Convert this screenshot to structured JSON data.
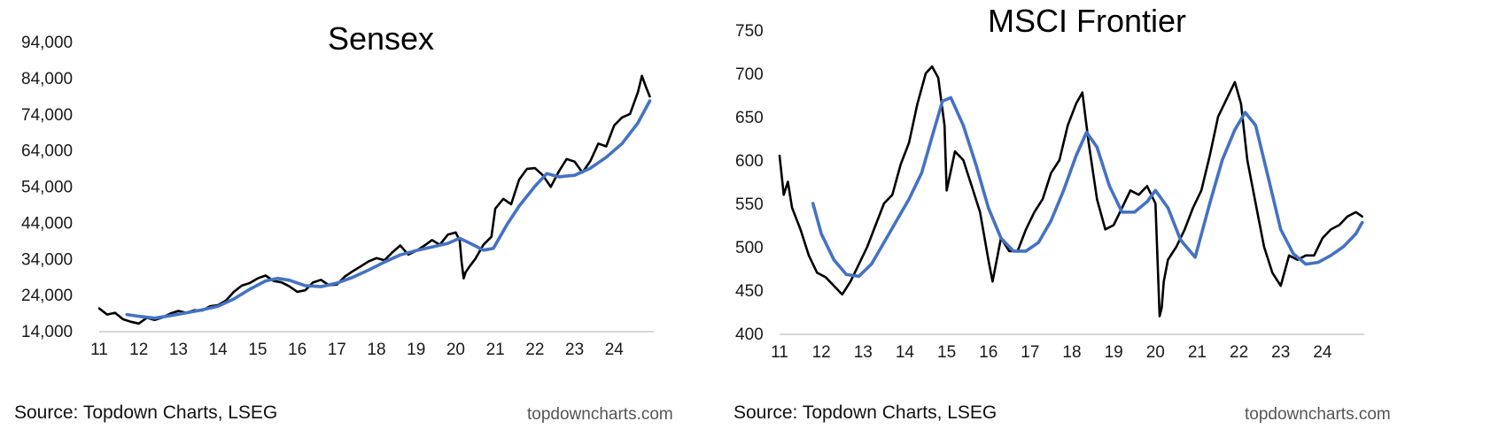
{
  "chart_data": [
    {
      "type": "line",
      "title": "Sensex",
      "xlabel": "",
      "ylabel": "",
      "x_ticks": [
        "11",
        "12",
        "13",
        "14",
        "15",
        "16",
        "17",
        "18",
        "19",
        "20",
        "21",
        "22",
        "23",
        "24"
      ],
      "y_ticks": [
        "14,000",
        "24,000",
        "34,000",
        "44,000",
        "54,000",
        "64,000",
        "74,000",
        "84,000",
        "94,000"
      ],
      "xlim": [
        2011.0,
        2025.0
      ],
      "ylim": [
        14000,
        94000
      ],
      "grid": false,
      "legend": "none",
      "series": [
        {
          "style": "black-raw",
          "color": "#000000",
          "x": [
            2011.0,
            2011.2,
            2011.4,
            2011.6,
            2011.8,
            2012.0,
            2012.2,
            2012.4,
            2012.6,
            2012.8,
            2013.0,
            2013.2,
            2013.4,
            2013.6,
            2013.8,
            2014.0,
            2014.2,
            2014.4,
            2014.6,
            2014.8,
            2015.0,
            2015.2,
            2015.4,
            2015.6,
            2015.8,
            2016.0,
            2016.2,
            2016.4,
            2016.6,
            2016.8,
            2017.0,
            2017.2,
            2017.4,
            2017.6,
            2017.8,
            2018.0,
            2018.2,
            2018.4,
            2018.6,
            2018.8,
            2019.0,
            2019.2,
            2019.4,
            2019.6,
            2019.8,
            2020.0,
            2020.1,
            2020.15,
            2020.2,
            2020.25,
            2020.35,
            2020.5,
            2020.7,
            2020.9,
            2021.0,
            2021.2,
            2021.4,
            2021.6,
            2021.8,
            2022.0,
            2022.2,
            2022.4,
            2022.6,
            2022.8,
            2023.0,
            2023.2,
            2023.4,
            2023.6,
            2023.8,
            2024.0,
            2024.2,
            2024.4,
            2024.6,
            2024.7,
            2024.8,
            2024.9
          ],
          "y": [
            20200,
            18500,
            19000,
            17200,
            16500,
            16000,
            17600,
            17000,
            17700,
            18800,
            19500,
            19000,
            19700,
            19600,
            20800,
            21100,
            22400,
            24800,
            26500,
            27200,
            28500,
            29300,
            27800,
            27400,
            26300,
            24800,
            25200,
            27400,
            28100,
            26600,
            26800,
            29000,
            30500,
            31800,
            33200,
            34100,
            33500,
            35700,
            37600,
            35100,
            36100,
            37500,
            39100,
            37800,
            40600,
            41200,
            39000,
            33000,
            28500,
            30200,
            31800,
            34000,
            37800,
            40000,
            47800,
            50500,
            49000,
            55800,
            58800,
            59000,
            57000,
            53800,
            58000,
            61500,
            60800,
            57800,
            61000,
            65800,
            65000,
            70800,
            73000,
            74000,
            80000,
            84500,
            81500,
            78800
          ]
        },
        {
          "style": "blue-average",
          "color": "#4472c4",
          "x": [
            2011.7,
            2012.0,
            2012.4,
            2012.8,
            2013.2,
            2013.6,
            2014.0,
            2014.4,
            2014.8,
            2015.2,
            2015.5,
            2015.8,
            2016.2,
            2016.6,
            2017.0,
            2017.4,
            2017.8,
            2018.2,
            2018.6,
            2019.0,
            2019.4,
            2019.8,
            2020.1,
            2020.4,
            2020.7,
            2020.95,
            2021.3,
            2021.6,
            2022.0,
            2022.3,
            2022.6,
            2023.0,
            2023.4,
            2023.8,
            2024.2,
            2024.6,
            2024.9
          ],
          "y": [
            18500,
            18000,
            17500,
            18200,
            19000,
            19800,
            20800,
            22800,
            25500,
            27800,
            28500,
            28000,
            26500,
            26200,
            27200,
            28800,
            30800,
            33000,
            35000,
            36200,
            37200,
            38200,
            39600,
            38000,
            36300,
            36800,
            43500,
            48500,
            54000,
            57500,
            56600,
            57000,
            59000,
            62000,
            65800,
            71500,
            77600
          ]
        }
      ]
    },
    {
      "type": "line",
      "title": "MSCI Frontier",
      "xlabel": "",
      "ylabel": "",
      "x_ticks": [
        "11",
        "12",
        "13",
        "14",
        "15",
        "16",
        "17",
        "18",
        "19",
        "20",
        "21",
        "22",
        "23",
        "24"
      ],
      "y_ticks": [
        "400",
        "450",
        "500",
        "550",
        "600",
        "650",
        "700",
        "750"
      ],
      "xlim": [
        2011.0,
        2025.0
      ],
      "ylim": [
        400,
        750
      ],
      "grid": false,
      "legend": "none",
      "series": [
        {
          "style": "black-raw",
          "color": "#000000",
          "x": [
            2011.0,
            2011.1,
            2011.2,
            2011.3,
            2011.5,
            2011.7,
            2011.9,
            2012.1,
            2012.3,
            2012.5,
            2012.7,
            2012.9,
            2013.1,
            2013.3,
            2013.5,
            2013.7,
            2013.9,
            2014.1,
            2014.3,
            2014.5,
            2014.65,
            2014.8,
            2014.95,
            2015.0,
            2015.2,
            2015.4,
            2015.6,
            2015.8,
            2016.0,
            2016.1,
            2016.3,
            2016.5,
            2016.7,
            2016.9,
            2017.1,
            2017.3,
            2017.5,
            2017.7,
            2017.9,
            2018.1,
            2018.25,
            2018.4,
            2018.6,
            2018.8,
            2019.0,
            2019.2,
            2019.4,
            2019.6,
            2019.8,
            2020.0,
            2020.1,
            2020.15,
            2020.2,
            2020.3,
            2020.5,
            2020.7,
            2020.9,
            2021.1,
            2021.3,
            2021.5,
            2021.7,
            2021.9,
            2022.05,
            2022.2,
            2022.4,
            2022.6,
            2022.8,
            2023.0,
            2023.2,
            2023.4,
            2023.6,
            2023.8,
            2024.0,
            2024.2,
            2024.4,
            2024.6,
            2024.8,
            2024.95
          ],
          "y": [
            605,
            560,
            575,
            545,
            520,
            490,
            470,
            465,
            455,
            445,
            460,
            480,
            500,
            525,
            550,
            560,
            595,
            620,
            665,
            700,
            708,
            695,
            640,
            565,
            610,
            600,
            570,
            540,
            485,
            460,
            510,
            495,
            495,
            520,
            540,
            555,
            585,
            600,
            640,
            665,
            678,
            620,
            555,
            520,
            525,
            545,
            565,
            560,
            570,
            550,
            420,
            430,
            460,
            485,
            500,
            520,
            545,
            565,
            605,
            650,
            670,
            690,
            665,
            600,
            550,
            500,
            470,
            455,
            490,
            485,
            490,
            490,
            510,
            520,
            525,
            535,
            540,
            535
          ]
        },
        {
          "style": "blue-average",
          "color": "#4472c4",
          "x": [
            2011.8,
            2012.0,
            2012.3,
            2012.6,
            2012.9,
            2013.2,
            2013.5,
            2013.8,
            2014.1,
            2014.4,
            2014.7,
            2014.9,
            2015.1,
            2015.4,
            2015.7,
            2016.0,
            2016.3,
            2016.6,
            2016.9,
            2017.2,
            2017.5,
            2017.8,
            2018.1,
            2018.35,
            2018.6,
            2018.9,
            2019.2,
            2019.5,
            2019.8,
            2020.0,
            2020.3,
            2020.6,
            2020.95,
            2021.3,
            2021.6,
            2021.9,
            2022.15,
            2022.4,
            2022.7,
            2023.0,
            2023.3,
            2023.6,
            2023.9,
            2024.2,
            2024.5,
            2024.8,
            2024.95
          ],
          "y": [
            550,
            515,
            485,
            468,
            466,
            480,
            505,
            530,
            555,
            585,
            635,
            668,
            672,
            640,
            595,
            545,
            510,
            495,
            495,
            505,
            530,
            565,
            605,
            632,
            615,
            570,
            540,
            540,
            552,
            565,
            545,
            508,
            488,
            550,
            600,
            635,
            655,
            640,
            580,
            520,
            492,
            480,
            482,
            490,
            500,
            515,
            528
          ]
        }
      ]
    }
  ],
  "footer": {
    "left_source": "Source: Topdown Charts, LSEG",
    "left_site": "topdowncharts.com",
    "right_source": "Source: Topdown Charts, LSEG",
    "right_site": "topdowncharts.com"
  }
}
